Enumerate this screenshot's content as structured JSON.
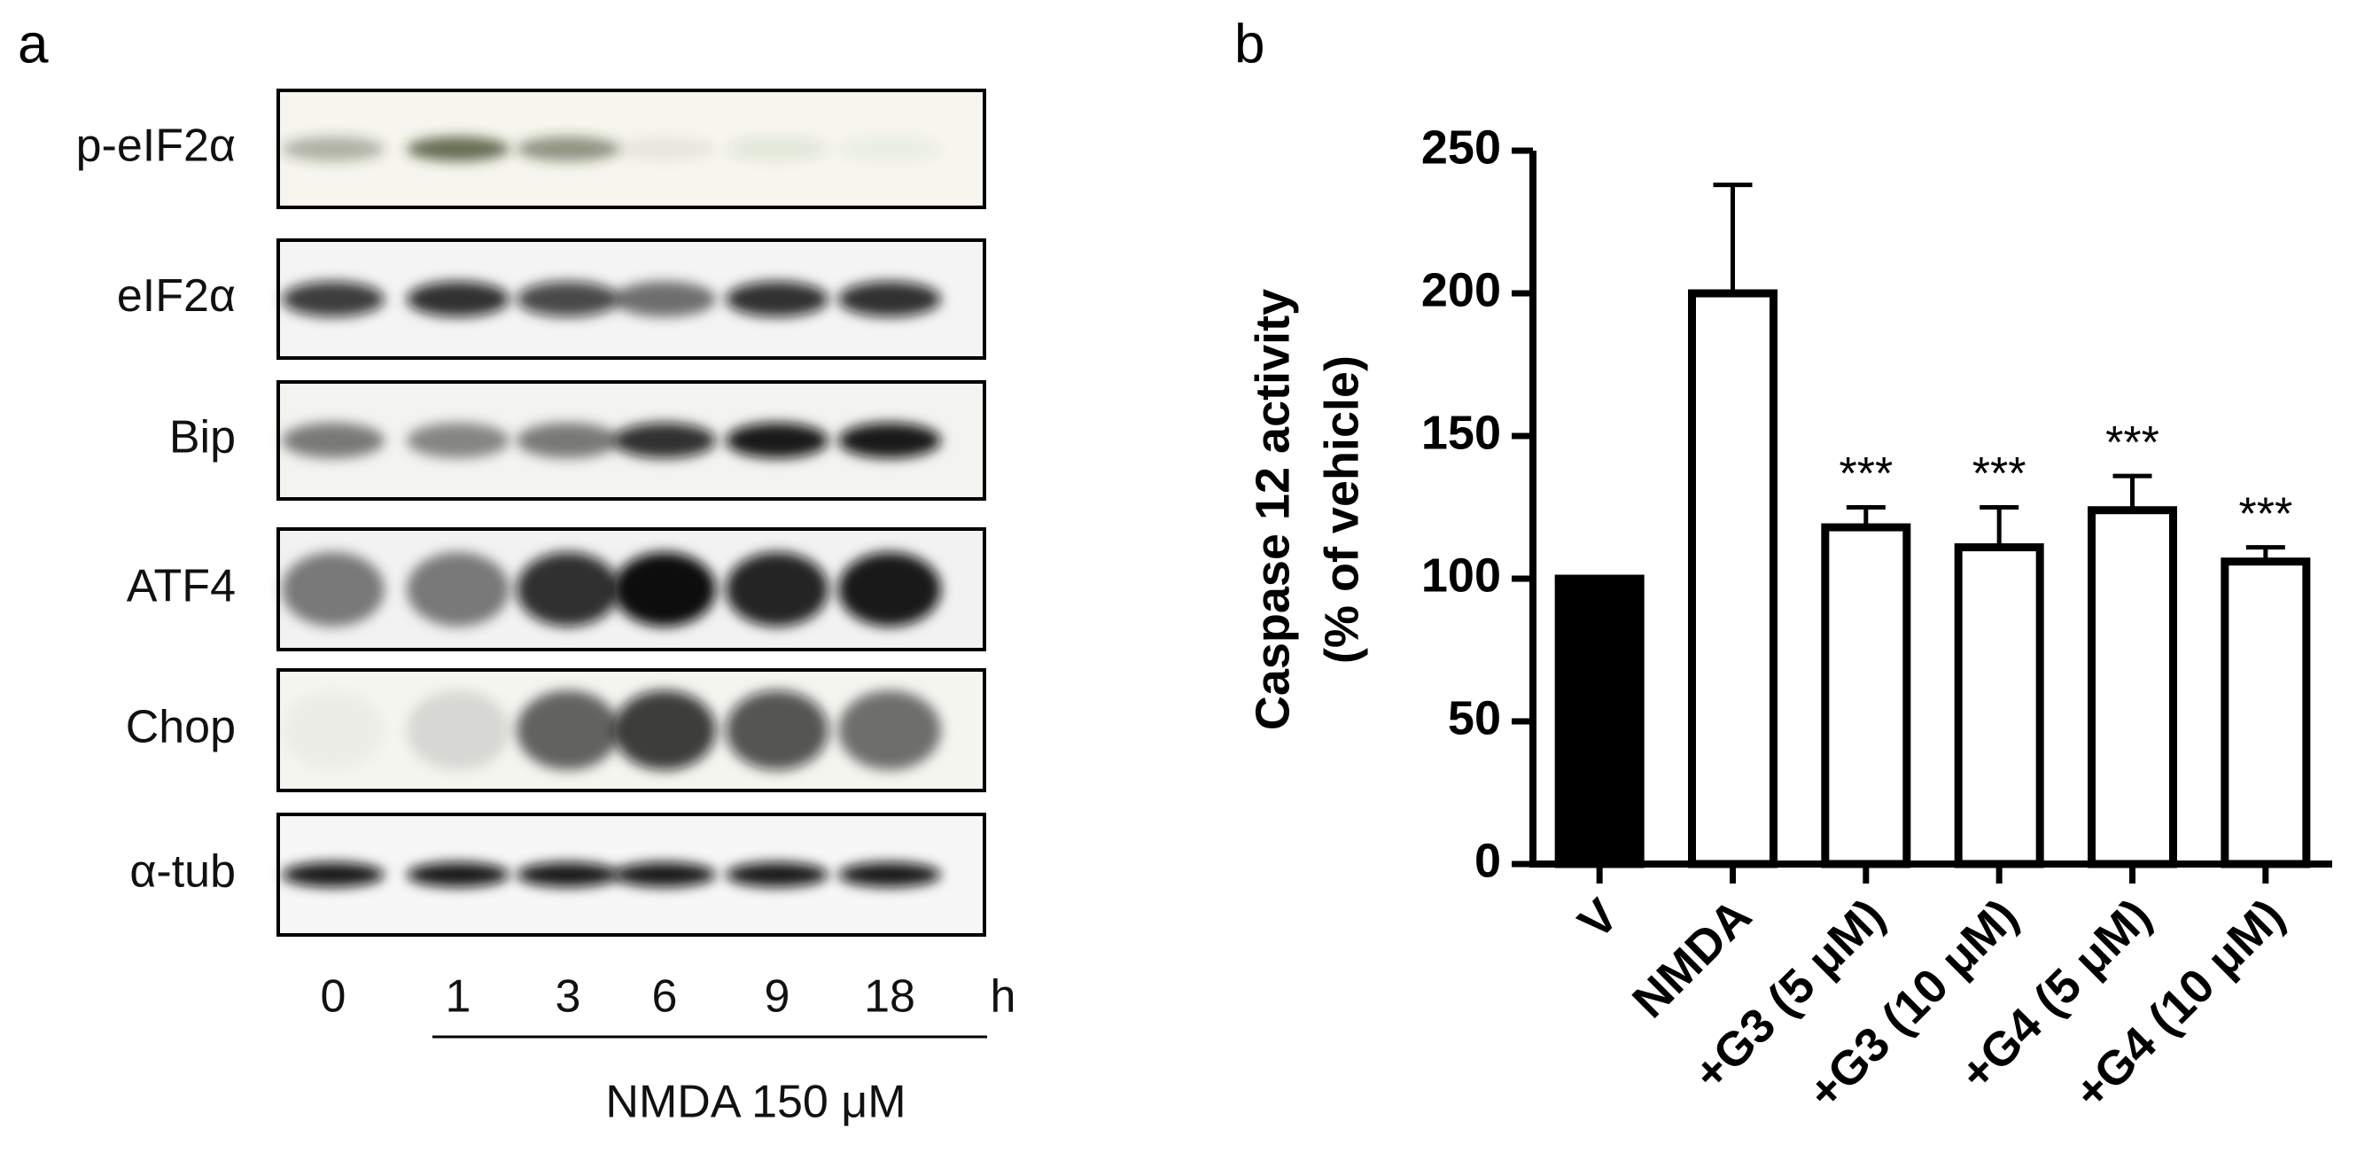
{
  "panel_labels": [
    "a",
    "b"
  ],
  "blot": {
    "rows": [
      "p-eIF2α",
      "eIF2α",
      "Bip",
      "ATF4",
      "Chop",
      "α-tub"
    ],
    "lanes": [
      "0",
      "1",
      "3",
      "6",
      "9",
      "18"
    ],
    "unit": "h",
    "treatment": "NMDA 150 μM"
  },
  "chart_data": {
    "type": "bar",
    "ylabel": [
      "Caspase 12 activity",
      "(% of vehicle)"
    ],
    "categories": [
      "V",
      "NMDA",
      "+G3 (5 μM)",
      "+G3 (10 μM)",
      "+G4 (5 μM)",
      "+G4 (10 μM)"
    ],
    "values": [
      100,
      200,
      118,
      111,
      124,
      106
    ],
    "errors": [
      null,
      38,
      7,
      14,
      12,
      5
    ],
    "colors": [
      "#000000",
      "#ffffff",
      "#ffffff",
      "#ffffff",
      "#ffffff",
      "#ffffff"
    ],
    "significance": [
      null,
      null,
      "***",
      "***",
      "***",
      "***"
    ],
    "ylim": [
      0,
      250
    ],
    "yticks": [
      0,
      50,
      100,
      150,
      200,
      250
    ]
  }
}
